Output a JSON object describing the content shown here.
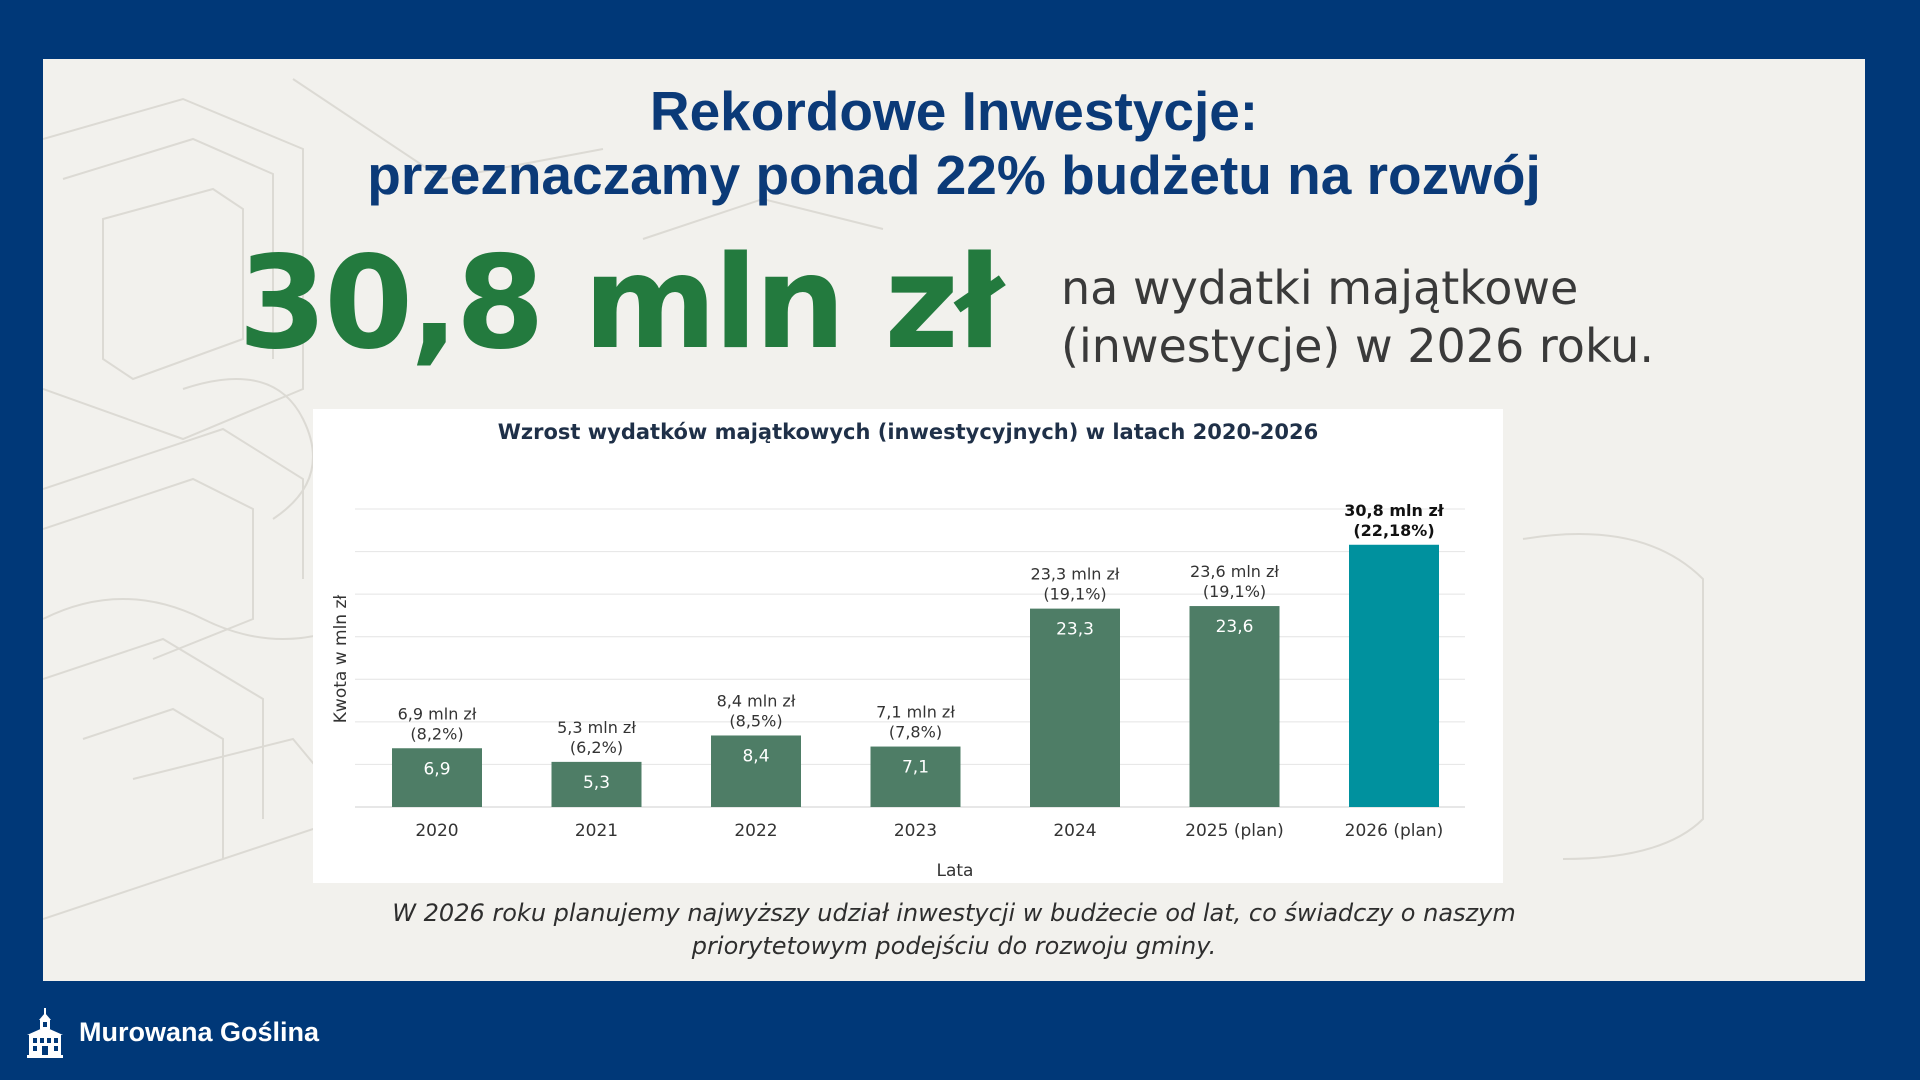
{
  "title_line1": "Rekordowe Inwestycje:",
  "title_line2": "przeznaczamy ponad 22% budżetu na rozwój",
  "headline_amount": "30,8 mln zł",
  "headline_desc_line1": "na wydatki majątkowe",
  "headline_desc_line2": "(inwestycje) w 2026 roku.",
  "caption_line1": "W 2026 roku planujemy najwyższy udział inwestycji w budżecie od lat, co świadczy o naszym",
  "caption_line2": "priorytetowym podejściu do rozwoju gminy.",
  "footer_name": "Murowana Goślina",
  "colors": {
    "background": "#003878",
    "panel": "#f2f1ed",
    "title": "#0b3a78",
    "headline_amount": "#237a3e",
    "bar": "#4e7d66",
    "bar_highlight": "#00919e"
  },
  "chart_data": {
    "type": "bar",
    "title": "Wzrost wydatków majątkowych (inwestycyjnych) w latach 2020-2026",
    "xlabel": "Lata",
    "ylabel": "Kwota w mln zł",
    "categories": [
      "2020",
      "2021",
      "2022",
      "2023",
      "2024",
      "2025 (plan)",
      "2026 (plan)"
    ],
    "values": [
      6.9,
      5.3,
      8.4,
      7.1,
      23.3,
      23.6,
      30.8
    ],
    "bar_labels": [
      "6,9",
      "5,3",
      "8,4",
      "7,1",
      "23,3",
      "23,6",
      ""
    ],
    "annotation_amounts": [
      "6,9 mln zł",
      "5,3 mln zł",
      "8,4 mln zł",
      "7,1 mln zł",
      "23,3 mln zł",
      "23,6 mln zł",
      "30,8 mln zł"
    ],
    "annotation_shares": [
      "(8,2%)",
      "(6,2%)",
      "(8,5%)",
      "(7,8%)",
      "(19,1%)",
      "(19,1%)",
      "(22,18%)"
    ],
    "highlight_index": 6,
    "ylim": [
      0,
      35
    ],
    "grid": true
  }
}
